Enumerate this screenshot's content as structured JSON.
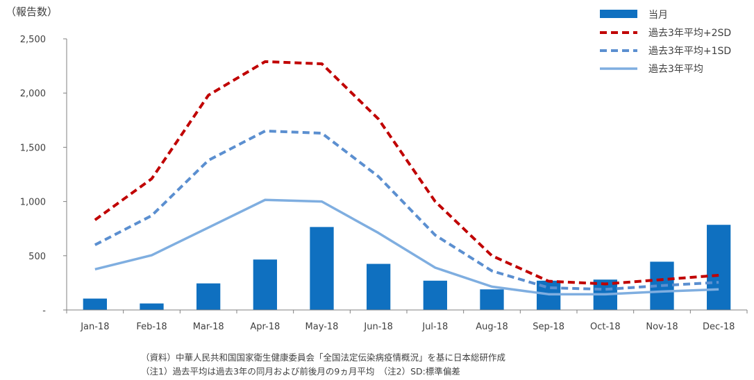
{
  "chart_data": {
    "type": "bar",
    "unit_label": "（報告数）",
    "categories": [
      "Jan-18",
      "Feb-18",
      "Mar-18",
      "Apr-18",
      "May-18",
      "Jun-18",
      "Jul-18",
      "Aug-18",
      "Sep-18",
      "Oct-18",
      "Nov-18",
      "Dec-18"
    ],
    "ylim": [
      0,
      2500
    ],
    "yticks": [
      {
        "value": 0,
        "label": "-"
      },
      {
        "value": 500,
        "label": "500"
      },
      {
        "value": 1000,
        "label": "1,000"
      },
      {
        "value": 1500,
        "label": "1,500"
      },
      {
        "value": 2000,
        "label": "2,000"
      },
      {
        "value": 2500,
        "label": "2,500"
      }
    ],
    "grid": false,
    "legend_position": "top-right",
    "series": [
      {
        "name": "当月",
        "type": "bar",
        "color": "#0f70c0",
        "values": [
          105,
          60,
          245,
          465,
          765,
          425,
          270,
          190,
          270,
          280,
          445,
          785
        ]
      },
      {
        "name": "過去3年平均+2SD",
        "type": "line",
        "style": "dashed",
        "color": "#c00000",
        "values": [
          830,
          1210,
          1980,
          2290,
          2270,
          1760,
          1000,
          500,
          265,
          240,
          280,
          320
        ]
      },
      {
        "name": "過去3年平均+1SD",
        "type": "line",
        "style": "dashed",
        "color": "#5b8fd0",
        "values": [
          600,
          870,
          1380,
          1650,
          1630,
          1230,
          690,
          360,
          205,
          190,
          225,
          255
        ]
      },
      {
        "name": "過去3年平均",
        "type": "line",
        "style": "solid",
        "color": "#7faee0",
        "values": [
          375,
          505,
          760,
          1015,
          1000,
          710,
          390,
          215,
          145,
          145,
          170,
          190
        ]
      }
    ]
  },
  "notes": {
    "source": "（資料）中華人民共和国国家衛生健康委員会「全国法定伝染病疫情概況」を基に日本総研作成",
    "note1": "（注1）過去平均は過去3年の同月および前後月の9ヵ月平均　（注2）SD:標準偏差"
  }
}
